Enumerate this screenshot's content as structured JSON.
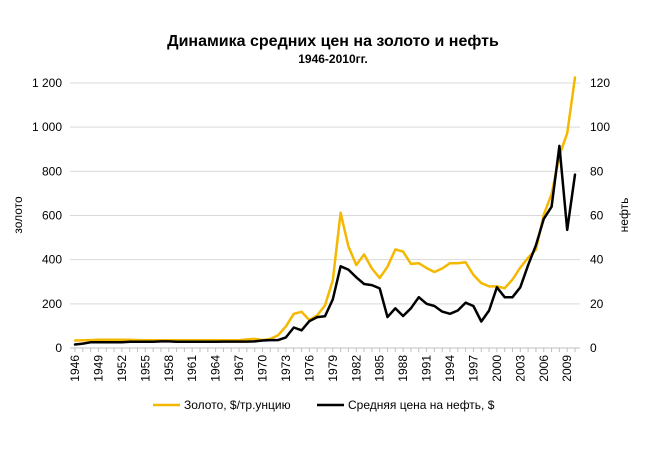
{
  "chart_data": {
    "type": "line",
    "title": "Динамика средних цен на золото и нефть",
    "subtitle": "1946-2010гг.",
    "ylabel_left": "золото",
    "ylabel_right": "нефть",
    "ylim_left": [
      0,
      1200
    ],
    "ylim_right": [
      0,
      120
    ],
    "yticks_left": [
      "0",
      "200",
      "400",
      "600",
      "800",
      "1 000",
      "1 200"
    ],
    "yticks_right": [
      "0",
      "20",
      "40",
      "60",
      "80",
      "100",
      "120"
    ],
    "xticks": [
      "1946",
      "1949",
      "1952",
      "1955",
      "1958",
      "1961",
      "1964",
      "1967",
      "1970",
      "1973",
      "1976",
      "1979",
      "1982",
      "1985",
      "1988",
      "1991",
      "1994",
      "1997",
      "2000",
      "2003",
      "2006",
      "2009"
    ],
    "grid": "horizontal",
    "legend_position": "bottom",
    "colors": {
      "gold": "#f5b800",
      "oil": "#000000",
      "grid": "#d9d9d9"
    },
    "x": [
      1946,
      1947,
      1948,
      1949,
      1950,
      1951,
      1952,
      1953,
      1954,
      1955,
      1956,
      1957,
      1958,
      1959,
      1960,
      1961,
      1962,
      1963,
      1964,
      1965,
      1966,
      1967,
      1968,
      1969,
      1970,
      1971,
      1972,
      1973,
      1974,
      1975,
      1976,
      1977,
      1978,
      1979,
      1980,
      1981,
      1982,
      1983,
      1984,
      1985,
      1986,
      1987,
      1988,
      1989,
      1990,
      1991,
      1992,
      1993,
      1994,
      1995,
      1996,
      1997,
      1998,
      1999,
      2000,
      2001,
      2002,
      2003,
      2004,
      2005,
      2006,
      2007,
      2008,
      2009,
      2010
    ],
    "series": [
      {
        "name": "Золото, $/тр.унцию",
        "axis": "left",
        "color": "#f5b800",
        "values": [
          34,
          35,
          36,
          37,
          37,
          37,
          37,
          37,
          36,
          35,
          35,
          35,
          35,
          35,
          35,
          35,
          35,
          35,
          35,
          35,
          35,
          35,
          39,
          41,
          36,
          41,
          58,
          98,
          155,
          164,
          126,
          148,
          193,
          306,
          612,
          460,
          376,
          424,
          360,
          317,
          368,
          446,
          437,
          381,
          384,
          362,
          344,
          360,
          384,
          384,
          388,
          331,
          294,
          279,
          279,
          271,
          310,
          364,
          409,
          445,
          604,
          697,
          872,
          972,
          1225
        ]
      },
      {
        "name": "Средняя цена на нефть, $",
        "axis": "right",
        "color": "#000000",
        "values": [
          1.6,
          2.0,
          2.6,
          2.6,
          2.6,
          2.6,
          2.6,
          2.8,
          2.8,
          2.8,
          2.8,
          3.0,
          3.0,
          2.8,
          2.8,
          2.8,
          2.8,
          2.8,
          2.8,
          2.9,
          2.9,
          2.9,
          2.9,
          3.0,
          3.4,
          3.6,
          3.6,
          4.8,
          9.3,
          8.0,
          12.2,
          14.0,
          14.4,
          22.0,
          37.0,
          35.5,
          32.0,
          29.0,
          28.5,
          27.0,
          14.0,
          18.0,
          14.5,
          18.0,
          23.0,
          20.0,
          19.0,
          16.5,
          15.5,
          17.0,
          20.5,
          19.0,
          12.0,
          17.0,
          27.5,
          23.0,
          23.0,
          27.5,
          37.5,
          46.5,
          58.5,
          64.0,
          91.5,
          53.5,
          78.5
        ]
      }
    ]
  }
}
